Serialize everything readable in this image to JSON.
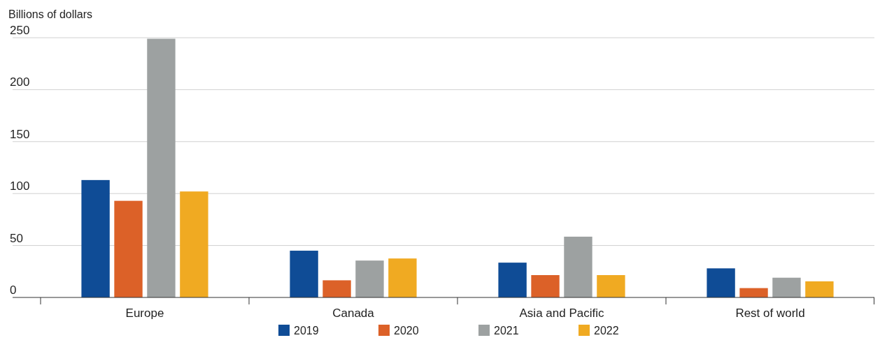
{
  "chart_data": {
    "type": "bar",
    "ylabel": "Billions of dollars",
    "categories": [
      "Europe",
      "Canada",
      "Asia and Pacific",
      "Rest of world"
    ],
    "series": [
      {
        "name": "2019",
        "color": "#0f4c96",
        "values": [
          113,
          45,
          33.5,
          28
        ]
      },
      {
        "name": "2020",
        "color": "#dc6128",
        "values": [
          93,
          16.5,
          21.5,
          9
        ]
      },
      {
        "name": "2021",
        "color": "#9da1a1",
        "values": [
          249,
          35.5,
          58.5,
          19
        ]
      },
      {
        "name": "2022",
        "color": "#f0aa22",
        "values": [
          102,
          37.5,
          21.5,
          15.5
        ]
      }
    ],
    "ylim": [
      0,
      250
    ],
    "yticks": [
      0,
      50,
      100,
      150,
      200,
      250
    ],
    "grid": "y",
    "legend": "bottom"
  }
}
